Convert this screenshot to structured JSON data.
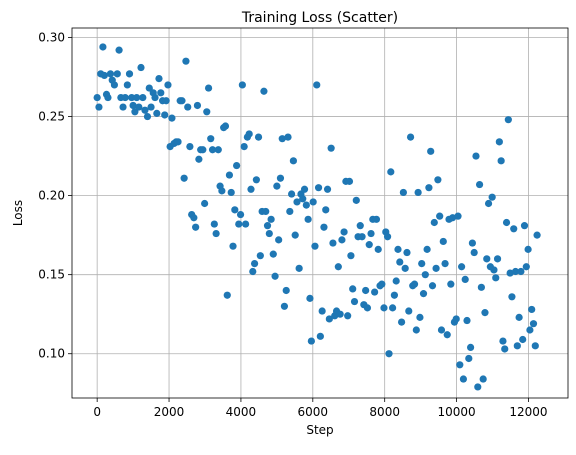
{
  "chart_data": {
    "type": "scatter",
    "title": "Training Loss (Scatter)",
    "xlabel": "Step",
    "ylabel": "Loss",
    "xlim": [
      -700,
      13100
    ],
    "ylim": [
      0.072,
      0.306
    ],
    "xticks": [
      0,
      2000,
      4000,
      6000,
      8000,
      10000,
      12000
    ],
    "yticks": [
      0.1,
      0.15,
      0.2,
      0.25,
      0.3
    ],
    "xtick_labels": [
      "0",
      "2000",
      "4000",
      "6000",
      "8000",
      "10000",
      "12000"
    ],
    "ytick_labels": [
      "0.10",
      "0.15",
      "0.20",
      "0.25",
      "0.30"
    ],
    "grid": true,
    "marker_color": "#1f77b4",
    "points": [
      [
        0,
        0.262
      ],
      [
        50,
        0.256
      ],
      [
        100,
        0.277
      ],
      [
        160,
        0.294
      ],
      [
        200,
        0.276
      ],
      [
        260,
        0.264
      ],
      [
        300,
        0.262
      ],
      [
        370,
        0.277
      ],
      [
        420,
        0.273
      ],
      [
        480,
        0.27
      ],
      [
        560,
        0.277
      ],
      [
        610,
        0.292
      ],
      [
        660,
        0.262
      ],
      [
        720,
        0.256
      ],
      [
        780,
        0.262
      ],
      [
        840,
        0.27
      ],
      [
        900,
        0.277
      ],
      [
        960,
        0.262
      ],
      [
        1000,
        0.257
      ],
      [
        1050,
        0.253
      ],
      [
        1100,
        0.262
      ],
      [
        1160,
        0.256
      ],
      [
        1220,
        0.281
      ],
      [
        1270,
        0.262
      ],
      [
        1330,
        0.254
      ],
      [
        1400,
        0.25
      ],
      [
        1450,
        0.268
      ],
      [
        1500,
        0.256
      ],
      [
        1560,
        0.265
      ],
      [
        1610,
        0.262
      ],
      [
        1660,
        0.252
      ],
      [
        1720,
        0.274
      ],
      [
        1770,
        0.265
      ],
      [
        1820,
        0.26
      ],
      [
        1880,
        0.251
      ],
      [
        1920,
        0.26
      ],
      [
        1970,
        0.27
      ],
      [
        2030,
        0.231
      ],
      [
        2080,
        0.249
      ],
      [
        2140,
        0.233
      ],
      [
        2200,
        0.234
      ],
      [
        2250,
        0.234
      ],
      [
        2310,
        0.26
      ],
      [
        2360,
        0.26
      ],
      [
        2420,
        0.211
      ],
      [
        2470,
        0.285
      ],
      [
        2520,
        0.256
      ],
      [
        2580,
        0.231
      ],
      [
        2630,
        0.188
      ],
      [
        2690,
        0.186
      ],
      [
        2740,
        0.18
      ],
      [
        2790,
        0.257
      ],
      [
        2830,
        0.223
      ],
      [
        2880,
        0.229
      ],
      [
        2940,
        0.229
      ],
      [
        2990,
        0.195
      ],
      [
        3050,
        0.253
      ],
      [
        3100,
        0.268
      ],
      [
        3160,
        0.236
      ],
      [
        3210,
        0.229
      ],
      [
        3260,
        0.182
      ],
      [
        3310,
        0.176
      ],
      [
        3370,
        0.229
      ],
      [
        3420,
        0.206
      ],
      [
        3470,
        0.203
      ],
      [
        3520,
        0.243
      ],
      [
        3570,
        0.244
      ],
      [
        3620,
        0.137
      ],
      [
        3680,
        0.213
      ],
      [
        3730,
        0.202
      ],
      [
        3780,
        0.168
      ],
      [
        3830,
        0.191
      ],
      [
        3880,
        0.219
      ],
      [
        3940,
        0.182
      ],
      [
        3990,
        0.188
      ],
      [
        4040,
        0.27
      ],
      [
        4090,
        0.231
      ],
      [
        4130,
        0.182
      ],
      [
        4180,
        0.237
      ],
      [
        4230,
        0.239
      ],
      [
        4280,
        0.204
      ],
      [
        4330,
        0.152
      ],
      [
        4380,
        0.157
      ],
      [
        4430,
        0.21
      ],
      [
        4490,
        0.237
      ],
      [
        4540,
        0.162
      ],
      [
        4590,
        0.19
      ],
      [
        4640,
        0.266
      ],
      [
        4690,
        0.19
      ],
      [
        4740,
        0.181
      ],
      [
        4790,
        0.176
      ],
      [
        4840,
        0.185
      ],
      [
        4900,
        0.163
      ],
      [
        4950,
        0.149
      ],
      [
        5000,
        0.206
      ],
      [
        5050,
        0.172
      ],
      [
        5100,
        0.211
      ],
      [
        5150,
        0.236
      ],
      [
        5210,
        0.13
      ],
      [
        5260,
        0.14
      ],
      [
        5310,
        0.237
      ],
      [
        5360,
        0.19
      ],
      [
        5410,
        0.201
      ],
      [
        5460,
        0.222
      ],
      [
        5510,
        0.175
      ],
      [
        5560,
        0.196
      ],
      [
        5620,
        0.154
      ],
      [
        5670,
        0.201
      ],
      [
        5720,
        0.198
      ],
      [
        5770,
        0.204
      ],
      [
        5820,
        0.194
      ],
      [
        5870,
        0.185
      ],
      [
        5920,
        0.135
      ],
      [
        5960,
        0.108
      ],
      [
        6010,
        0.196
      ],
      [
        6060,
        0.168
      ],
      [
        6110,
        0.27
      ],
      [
        6160,
        0.205
      ],
      [
        6210,
        0.111
      ],
      [
        6260,
        0.127
      ],
      [
        6310,
        0.18
      ],
      [
        6360,
        0.191
      ],
      [
        6410,
        0.204
      ],
      [
        6460,
        0.122
      ],
      [
        6510,
        0.23
      ],
      [
        6560,
        0.17
      ],
      [
        6610,
        0.124
      ],
      [
        6660,
        0.127
      ],
      [
        6710,
        0.155
      ],
      [
        6760,
        0.125
      ],
      [
        6810,
        0.172
      ],
      [
        6870,
        0.177
      ],
      [
        6920,
        0.209
      ],
      [
        6970,
        0.124
      ],
      [
        7020,
        0.209
      ],
      [
        7060,
        0.162
      ],
      [
        7110,
        0.141
      ],
      [
        7160,
        0.133
      ],
      [
        7210,
        0.197
      ],
      [
        7260,
        0.174
      ],
      [
        7320,
        0.181
      ],
      [
        7370,
        0.174
      ],
      [
        7420,
        0.131
      ],
      [
        7470,
        0.14
      ],
      [
        7520,
        0.129
      ],
      [
        7570,
        0.169
      ],
      [
        7620,
        0.176
      ],
      [
        7670,
        0.185
      ],
      [
        7720,
        0.139
      ],
      [
        7770,
        0.185
      ],
      [
        7820,
        0.166
      ],
      [
        7870,
        0.143
      ],
      [
        7920,
        0.144
      ],
      [
        7980,
        0.129
      ],
      [
        8030,
        0.177
      ],
      [
        8080,
        0.174
      ],
      [
        8120,
        0.1
      ],
      [
        8170,
        0.215
      ],
      [
        8220,
        0.129
      ],
      [
        8270,
        0.137
      ],
      [
        8320,
        0.146
      ],
      [
        8370,
        0.166
      ],
      [
        8420,
        0.158
      ],
      [
        8470,
        0.12
      ],
      [
        8520,
        0.202
      ],
      [
        8570,
        0.154
      ],
      [
        8620,
        0.164
      ],
      [
        8670,
        0.127
      ],
      [
        8720,
        0.237
      ],
      [
        8780,
        0.143
      ],
      [
        8830,
        0.144
      ],
      [
        8880,
        0.115
      ],
      [
        8930,
        0.202
      ],
      [
        8980,
        0.123
      ],
      [
        9030,
        0.157
      ],
      [
        9080,
        0.138
      ],
      [
        9130,
        0.15
      ],
      [
        9180,
        0.166
      ],
      [
        9230,
        0.205
      ],
      [
        9280,
        0.228
      ],
      [
        9330,
        0.143
      ],
      [
        9380,
        0.183
      ],
      [
        9430,
        0.154
      ],
      [
        9480,
        0.21
      ],
      [
        9530,
        0.187
      ],
      [
        9580,
        0.115
      ],
      [
        9630,
        0.171
      ],
      [
        9680,
        0.157
      ],
      [
        9740,
        0.112
      ],
      [
        9790,
        0.185
      ],
      [
        9840,
        0.144
      ],
      [
        9890,
        0.186
      ],
      [
        9940,
        0.12
      ],
      [
        9990,
        0.122
      ],
      [
        10040,
        0.187
      ],
      [
        10090,
        0.093
      ],
      [
        10140,
        0.155
      ],
      [
        10190,
        0.084
      ],
      [
        10240,
        0.147
      ],
      [
        10290,
        0.121
      ],
      [
        10340,
        0.097
      ],
      [
        10390,
        0.104
      ],
      [
        10440,
        0.17
      ],
      [
        10490,
        0.164
      ],
      [
        10540,
        0.225
      ],
      [
        10590,
        0.079
      ],
      [
        10640,
        0.207
      ],
      [
        10690,
        0.142
      ],
      [
        10740,
        0.084
      ],
      [
        10790,
        0.126
      ],
      [
        10840,
        0.16
      ],
      [
        10890,
        0.195
      ],
      [
        10940,
        0.155
      ],
      [
        10990,
        0.199
      ],
      [
        11040,
        0.153
      ],
      [
        11090,
        0.148
      ],
      [
        11140,
        0.16
      ],
      [
        11190,
        0.234
      ],
      [
        11240,
        0.222
      ],
      [
        11290,
        0.108
      ],
      [
        11340,
        0.103
      ],
      [
        11390,
        0.183
      ],
      [
        11440,
        0.248
      ],
      [
        11490,
        0.151
      ],
      [
        11540,
        0.136
      ],
      [
        11590,
        0.179
      ],
      [
        11640,
        0.152
      ],
      [
        11690,
        0.105
      ],
      [
        11740,
        0.123
      ],
      [
        11790,
        0.152
      ],
      [
        11840,
        0.109
      ],
      [
        11890,
        0.181
      ],
      [
        11940,
        0.155
      ],
      [
        11990,
        0.166
      ],
      [
        12040,
        0.115
      ],
      [
        12090,
        0.128
      ],
      [
        12140,
        0.119
      ],
      [
        12190,
        0.105
      ],
      [
        12240,
        0.175
      ]
    ]
  }
}
